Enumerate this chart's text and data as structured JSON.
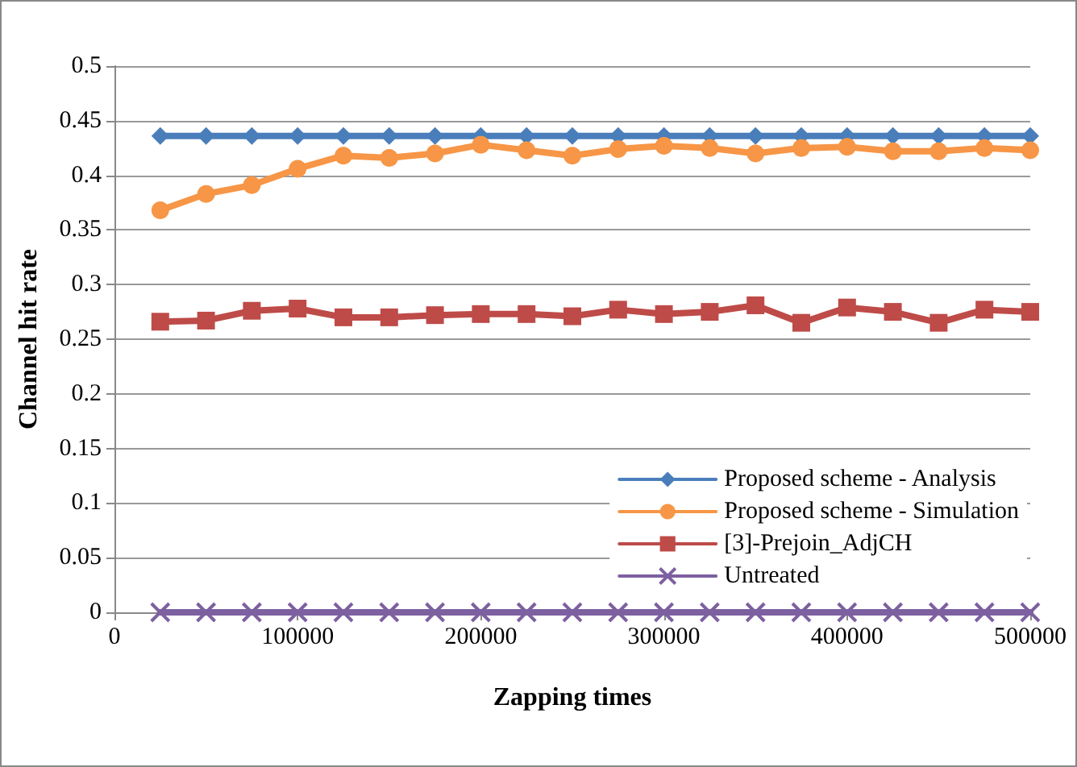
{
  "chart_data": {
    "type": "line",
    "xlabel": "Zapping times",
    "ylabel": "Channel hit rate",
    "x": [
      25000,
      50000,
      75000,
      100000,
      125000,
      150000,
      175000,
      200000,
      225000,
      250000,
      275000,
      300000,
      325000,
      350000,
      375000,
      400000,
      425000,
      450000,
      475000,
      500000
    ],
    "series": [
      {
        "name": "Proposed scheme - Analysis",
        "color": "#4a7ebb",
        "marker": "diamond",
        "values": [
          0.436,
          0.436,
          0.436,
          0.436,
          0.436,
          0.436,
          0.436,
          0.436,
          0.436,
          0.436,
          0.436,
          0.436,
          0.436,
          0.436,
          0.436,
          0.436,
          0.436,
          0.436,
          0.436,
          0.436
        ]
      },
      {
        "name": "Proposed scheme - Simulation",
        "color": "#f79646",
        "marker": "circle",
        "values": [
          0.368,
          0.383,
          0.391,
          0.406,
          0.418,
          0.416,
          0.42,
          0.428,
          0.423,
          0.418,
          0.424,
          0.427,
          0.425,
          0.42,
          0.425,
          0.426,
          0.422,
          0.422,
          0.425,
          0.423
        ]
      },
      {
        "name": "[3]-Prejoin_AdjCH",
        "color": "#be4b48",
        "marker": "square",
        "values": [
          0.266,
          0.267,
          0.276,
          0.278,
          0.27,
          0.27,
          0.272,
          0.273,
          0.273,
          0.271,
          0.277,
          0.273,
          0.275,
          0.281,
          0.265,
          0.279,
          0.275,
          0.265,
          0.277,
          0.275
        ]
      },
      {
        "name": "Untreated",
        "color": "#7d60a0",
        "marker": "cross",
        "values": [
          0,
          0,
          0,
          0,
          0,
          0,
          0,
          0,
          0,
          0,
          0,
          0,
          0,
          0,
          0,
          0,
          0,
          0,
          0,
          0
        ]
      }
    ],
    "xlim": [
      0,
      500000
    ],
    "xticks": [
      0,
      100000,
      200000,
      300000,
      400000,
      500000
    ],
    "ylim": [
      0,
      0.5
    ],
    "yticks": [
      0,
      0.05,
      0.1,
      0.15,
      0.2,
      0.25,
      0.3,
      0.35,
      0.4,
      0.45,
      0.5
    ],
    "grid": "y",
    "legend": "bottom right"
  }
}
